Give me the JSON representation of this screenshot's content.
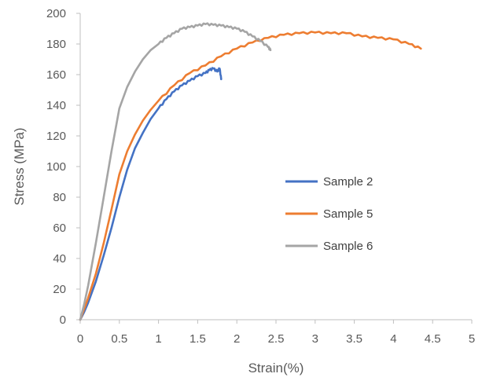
{
  "chart_data": {
    "type": "line",
    "title": "",
    "xlabel": "Strain(%)",
    "ylabel": "Stress  (MPa)",
    "xlim": [
      0,
      5
    ],
    "ylim": [
      0,
      200
    ],
    "xticks": [
      0,
      0.5,
      1,
      1.5,
      2,
      2.5,
      3,
      3.5,
      4,
      4.5,
      5
    ],
    "xtick_labels": [
      "0",
      "0.5",
      "1",
      "1.5",
      "2",
      "2.5",
      "3",
      "3.5",
      "4",
      "4.5",
      "5"
    ],
    "yticks": [
      0,
      20,
      40,
      60,
      80,
      100,
      120,
      140,
      160,
      180,
      200
    ],
    "ytick_labels": [
      "0",
      "20",
      "40",
      "60",
      "80",
      "100",
      "120",
      "140",
      "160",
      "180",
      "200"
    ],
    "grid": false,
    "legend_position": "center-right",
    "series": [
      {
        "name": "Sample 2",
        "color": "#4472c4",
        "x": [
          0,
          0.05,
          0.1,
          0.2,
          0.3,
          0.4,
          0.5,
          0.6,
          0.7,
          0.8,
          0.9,
          1.0,
          1.1,
          1.2,
          1.3,
          1.4,
          1.5,
          1.6,
          1.65,
          1.7,
          1.75,
          1.78,
          1.8
        ],
        "y": [
          0,
          5,
          11,
          25,
          42,
          60,
          80,
          98,
          112,
          122,
          131,
          138,
          144,
          149,
          153,
          156,
          159,
          161,
          163,
          164,
          162,
          164,
          157
        ]
      },
      {
        "name": "Sample 5",
        "color": "#ed7d31",
        "x": [
          0,
          0.05,
          0.1,
          0.2,
          0.3,
          0.4,
          0.5,
          0.6,
          0.7,
          0.8,
          0.9,
          1.0,
          1.2,
          1.4,
          1.6,
          1.8,
          2.0,
          2.2,
          2.4,
          2.6,
          2.8,
          3.0,
          3.2,
          3.4,
          3.6,
          3.8,
          4.0,
          4.2,
          4.35
        ],
        "y": [
          0,
          7,
          14,
          30,
          50,
          72,
          95,
          110,
          121,
          130,
          137,
          143,
          153,
          161,
          166,
          172,
          177,
          181,
          184,
          186,
          187,
          187.5,
          187,
          187,
          185,
          184,
          183,
          180,
          177
        ]
      },
      {
        "name": "Sample 6",
        "color": "#a5a5a5",
        "x": [
          0,
          0.05,
          0.1,
          0.2,
          0.3,
          0.4,
          0.5,
          0.6,
          0.7,
          0.8,
          0.9,
          1.0,
          1.1,
          1.2,
          1.3,
          1.4,
          1.5,
          1.6,
          1.7,
          1.8,
          1.9,
          2.0,
          2.1,
          2.2,
          2.3,
          2.4,
          2.43
        ],
        "y": [
          0,
          10,
          22,
          50,
          80,
          110,
          138,
          152,
          162,
          170,
          176,
          180,
          184,
          187,
          190,
          191,
          192,
          193,
          192.5,
          192,
          191,
          190,
          188,
          185,
          182,
          178,
          176
        ]
      }
    ]
  }
}
